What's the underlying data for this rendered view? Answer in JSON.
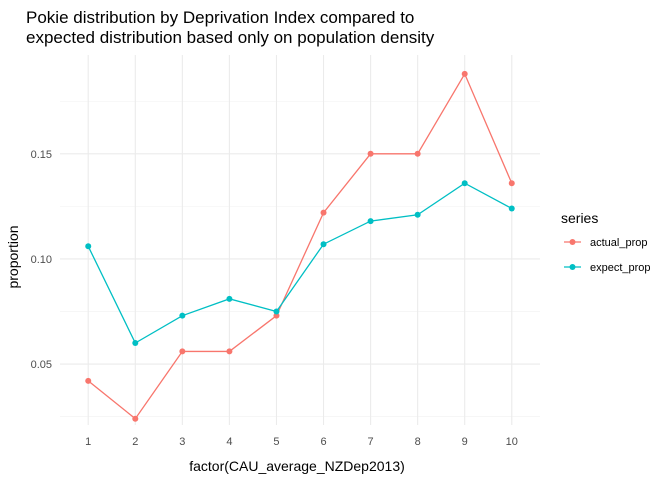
{
  "chart_data": {
    "type": "line",
    "title_line1": "Pokie distribution by Deprivation Index compared to",
    "title_line2": "expected distribution based only on population density",
    "xlabel": "factor(CAU_average_NZDep2013)",
    "ylabel": "proportion",
    "categories": [
      "1",
      "2",
      "3",
      "4",
      "5",
      "6",
      "7",
      "8",
      "9",
      "10"
    ],
    "y_ticks": [
      0.05,
      0.1,
      0.15
    ],
    "y_tick_labels": [
      "0.05",
      "0.10",
      "0.15"
    ],
    "ylim": [
      0.021,
      0.197
    ],
    "grid": true,
    "legend_title": "series",
    "legend_position": "right",
    "series": [
      {
        "name": "actual_prop",
        "color": "#F8766D",
        "values": [
          0.042,
          0.024,
          0.056,
          0.056,
          0.073,
          0.122,
          0.15,
          0.15,
          0.188,
          0.136
        ]
      },
      {
        "name": "expect_prop",
        "color": "#00BFC4",
        "values": [
          0.106,
          0.06,
          0.073,
          0.081,
          0.075,
          0.107,
          0.118,
          0.121,
          0.136,
          0.124
        ]
      }
    ]
  }
}
